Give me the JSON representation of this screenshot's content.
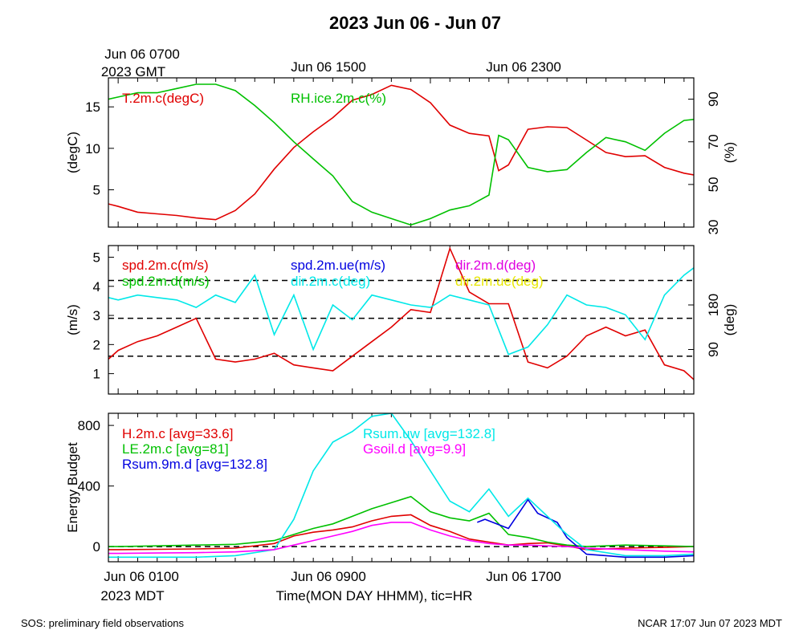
{
  "page": {
    "title": "2023 Jun 06 - Jun 07",
    "gmt_label_line1": "Jun 06 0700",
    "gmt_label_line2": "2023 GMT",
    "gmt_ticks": [
      "Jun 06 1500",
      "Jun 06 2300"
    ],
    "mdt_ticks": [
      "Jun 06 0100",
      "Jun 06 0900",
      "Jun 06 1700"
    ],
    "mdt_label": "2023 MDT",
    "xlabel": "Time(MON DAY HHMM), tic=HR",
    "footer_left": "SOS: preliminary field observations",
    "footer_right": "NCAR 17:07 Jun 07 2023 MDT"
  },
  "chart_data": [
    {
      "type": "line",
      "x_range_hours": [
        -0.5,
        29.5
      ],
      "ylabel": "(degC)",
      "ylabel_right": "(%)",
      "ylim": [
        0.5,
        18.5
      ],
      "y_ticks": [
        "5",
        "10",
        "15"
      ],
      "y_right_ticks": [
        "30",
        "50",
        "70",
        "90"
      ],
      "series": [
        {
          "name": "T.2m.c(degC)",
          "color": "#e00000",
          "x": [
            -0.5,
            0,
            1,
            2,
            3,
            4,
            5,
            6,
            7,
            8,
            9,
            10,
            11,
            12,
            13,
            14,
            15,
            16,
            17,
            18,
            19,
            19.5,
            20,
            21,
            22,
            23,
            24,
            25,
            26,
            27,
            28,
            29,
            29.5
          ],
          "y": [
            3.3,
            3,
            2.3,
            2.1,
            1.9,
            1.6,
            1.4,
            2.5,
            4.5,
            7.5,
            10.1,
            12,
            13.7,
            15.8,
            16.5,
            17.6,
            17.1,
            15.5,
            12.8,
            11.8,
            11.5,
            7.3,
            8,
            12.3,
            12.6,
            12.5,
            11,
            9.5,
            9,
            9.1,
            7.7,
            7,
            6.8
          ]
        },
        {
          "name": "RH.ice.2m.c(%)",
          "color": "#00c000",
          "right_axis": true,
          "right_range": [
            30,
            100
          ],
          "x": [
            -0.5,
            0,
            1,
            2,
            3,
            4,
            5,
            6,
            7,
            8,
            9,
            10,
            11,
            12,
            13,
            14,
            15,
            16,
            17,
            18,
            19,
            19.5,
            20,
            21,
            22,
            23,
            24,
            25,
            26,
            27,
            28,
            29,
            29.5
          ],
          "y": [
            90,
            91,
            93,
            93,
            95,
            97,
            97,
            94,
            87,
            79,
            70,
            62,
            54,
            42,
            37,
            34,
            31,
            34,
            38,
            40,
            45,
            73,
            71,
            58,
            56,
            57,
            65,
            72,
            70,
            66,
            74,
            80,
            80.5
          ]
        }
      ]
    },
    {
      "type": "line",
      "x_range_hours": [
        -0.5,
        29.5
      ],
      "ylabel": "(m/s)",
      "ylabel_right": "(deg)",
      "ylim": [
        0.3,
        5.4
      ],
      "y_ticks": [
        "1",
        "2",
        "3",
        "4",
        "5"
      ],
      "y_right_ticks": [
        "90",
        "180"
      ],
      "ref_lines": [
        1.6,
        2.9,
        4.2
      ],
      "series": [
        {
          "name": "spd.2m.c(m/s)",
          "color": "#e00000",
          "x": [
            -0.5,
            0,
            1,
            2,
            3,
            4,
            5,
            6,
            7,
            8,
            9,
            10,
            11,
            12,
            13,
            14,
            15,
            16,
            17,
            18,
            19,
            20,
            21,
            22,
            23,
            24,
            25,
            26,
            27,
            28,
            29,
            29.5
          ],
          "y": [
            1.5,
            1.8,
            2.1,
            2.3,
            2.6,
            2.9,
            1.5,
            1.4,
            1.5,
            1.7,
            1.3,
            1.2,
            1.1,
            1.6,
            2.1,
            2.6,
            3.2,
            3.1,
            5.3,
            3.8,
            3.4,
            3.4,
            1.4,
            1.2,
            1.6,
            2.3,
            2.6,
            2.3,
            2.5,
            1.3,
            1.1,
            0.8
          ]
        },
        {
          "name": "spd.2m.d(m/s)",
          "color": "#00c000",
          "x": [],
          "y": []
        },
        {
          "name": "spd.2m.ue(m/s)",
          "color": "#0000e0",
          "x": [],
          "y": []
        },
        {
          "name": "dir.2m.c(deg)",
          "color": "#00e8e8",
          "right_axis": true,
          "x": [
            -0.5,
            0,
            1,
            2,
            3,
            4,
            5,
            6,
            7,
            8,
            9,
            10,
            11,
            12,
            13,
            14,
            15,
            16,
            17,
            18,
            19,
            20,
            21,
            22,
            23,
            24,
            25,
            26,
            27,
            28,
            29,
            29.5
          ],
          "y": [
            195,
            190,
            200,
            195,
            190,
            175,
            200,
            185,
            240,
            120,
            200,
            90,
            180,
            150,
            200,
            190,
            180,
            175,
            200,
            190,
            180,
            80,
            95,
            140,
            200,
            180,
            175,
            160,
            110,
            200,
            240,
            255
          ]
        },
        {
          "name": "dir.2m.d(deg)",
          "color": "#e000e0",
          "x": [],
          "y": []
        },
        {
          "name": "dir.2m.ue(deg)",
          "color": "#e8e800",
          "x": [],
          "y": []
        }
      ]
    },
    {
      "type": "line",
      "x_range_hours": [
        -0.5,
        29.5
      ],
      "ylabel": "Energy Budget",
      "ylim": [
        -100,
        880
      ],
      "y_ticks": [
        "0",
        "400",
        "800"
      ],
      "series": [
        {
          "name": "H.2m.c [avg=33.6]",
          "color": "#e00000",
          "x": [
            -0.5,
            0,
            2,
            4,
            6,
            8,
            9,
            10,
            11,
            12,
            13,
            14,
            15,
            16,
            17,
            18,
            19,
            20,
            21,
            22,
            23,
            24,
            26,
            28,
            29.5
          ],
          "y": [
            -20,
            -20,
            -18,
            -15,
            -10,
            20,
            70,
            95,
            110,
            130,
            170,
            200,
            210,
            140,
            100,
            50,
            30,
            10,
            20,
            25,
            5,
            -20,
            -10,
            -5,
            0
          ]
        },
        {
          "name": "LE.2m.c [avg=81]",
          "color": "#00c000",
          "x": [
            -0.5,
            0,
            2,
            4,
            6,
            8,
            9,
            10,
            11,
            12,
            13,
            14,
            15,
            16,
            17,
            18,
            19,
            20,
            21,
            22,
            23,
            24,
            26,
            28,
            29.5
          ],
          "y": [
            0,
            0,
            5,
            10,
            15,
            40,
            80,
            120,
            150,
            200,
            250,
            290,
            330,
            230,
            190,
            170,
            220,
            80,
            60,
            30,
            10,
            0,
            10,
            5,
            0
          ]
        },
        {
          "name": "Rsum.9m.d [avg=132.8]",
          "color": "#0000e0",
          "x": [
            18.4,
            18.8,
            20,
            21,
            21.5,
            22.5,
            23,
            24,
            26,
            28,
            29.5
          ],
          "y": [
            160,
            180,
            120,
            310,
            220,
            160,
            60,
            -50,
            -70,
            -70,
            -60
          ]
        },
        {
          "name": "Rsum.uw [avg=132.8]",
          "color": "#00e8e8",
          "x": [
            -0.5,
            0,
            2,
            4,
            6,
            8,
            9,
            10,
            11,
            12,
            13,
            14,
            15,
            16,
            17,
            18,
            19,
            20,
            21,
            22,
            23,
            24,
            26,
            28,
            29.5
          ],
          "y": [
            -70,
            -70,
            -70,
            -70,
            -60,
            -20,
            180,
            500,
            690,
            760,
            860,
            880,
            700,
            500,
            300,
            230,
            380,
            200,
            320,
            200,
            80,
            -20,
            -60,
            -60,
            -50
          ]
        },
        {
          "name": "Gsoil.d [avg=9.9]",
          "color": "#ff00ff",
          "x": [
            -0.5,
            0,
            2,
            4,
            6,
            8,
            9,
            10,
            11,
            12,
            13,
            14,
            15,
            16,
            17,
            18,
            19,
            20,
            21,
            22,
            23,
            24,
            26,
            28,
            29.5
          ],
          "y": [
            -45,
            -45,
            -42,
            -40,
            -35,
            -20,
            10,
            40,
            70,
            100,
            140,
            160,
            160,
            110,
            70,
            40,
            20,
            10,
            10,
            5,
            0,
            -10,
            -20,
            -30,
            -35
          ]
        }
      ]
    }
  ]
}
